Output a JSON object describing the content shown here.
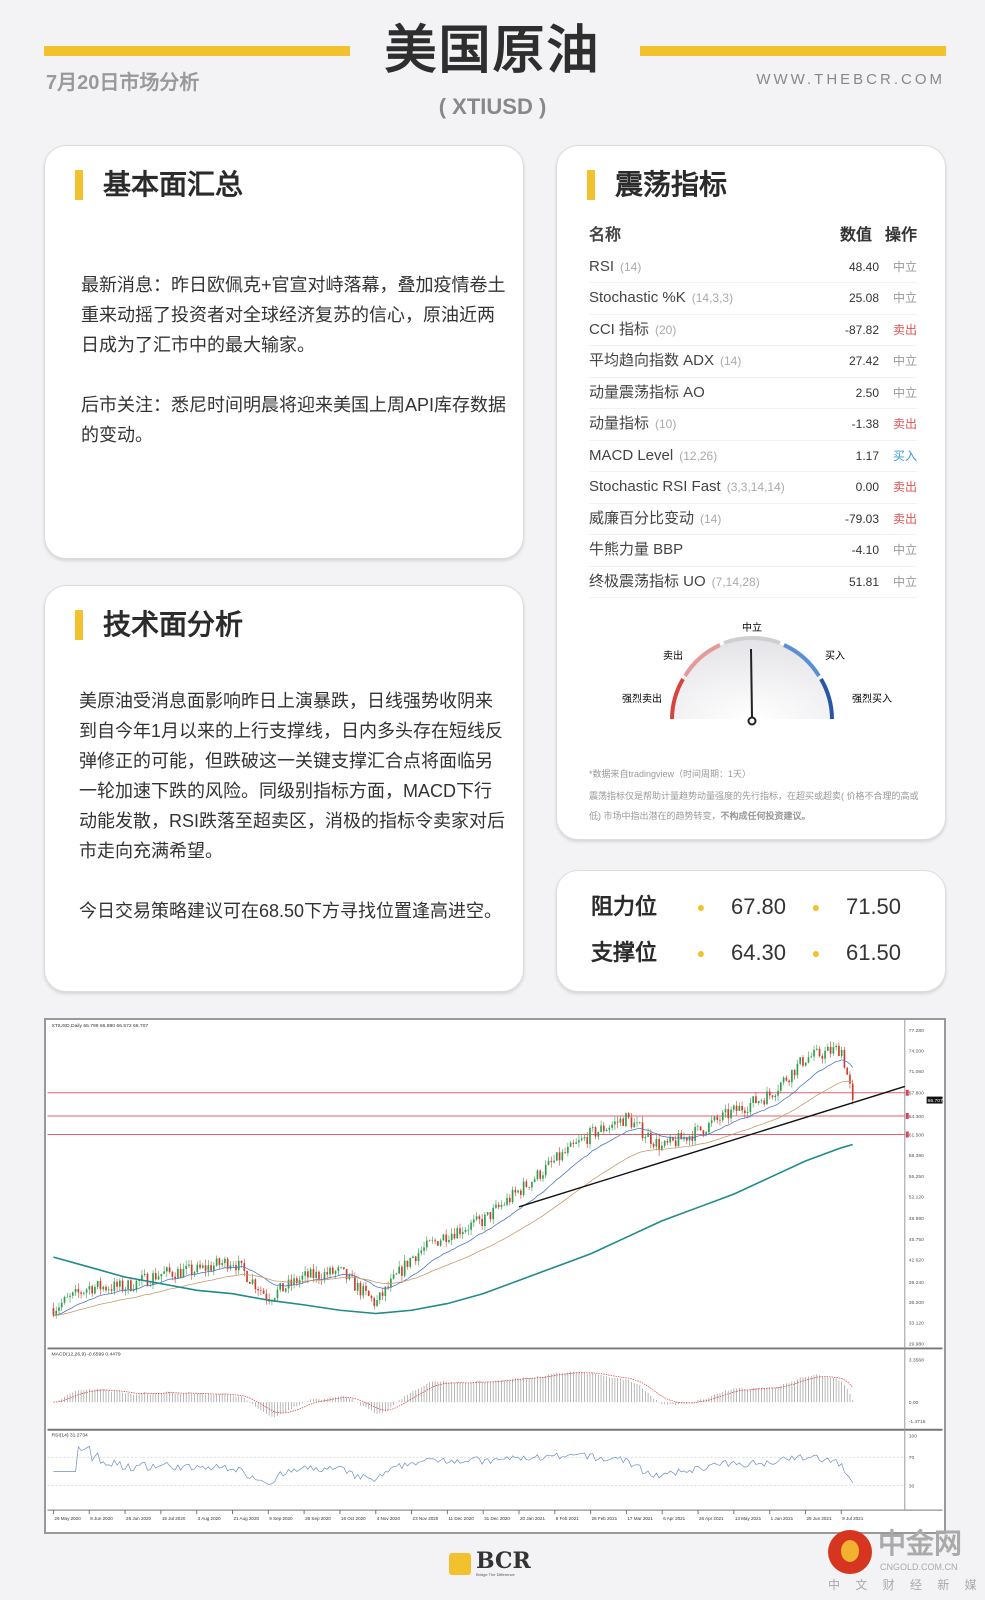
{
  "header": {
    "title": "美国原油",
    "symbol": "( XTIUSD )",
    "date": "7月20日市场分析",
    "site": "WWW.THEBCR.COM",
    "accent": "#f2c12e"
  },
  "fundamentals": {
    "title": "基本面汇总",
    "p1": "最新消息：昨日欧佩克+官宣对峙落幕，叠加疫情卷土重来动摇了投资者对全球经济复苏的信心，原油近两日成为了汇市中的最大输家。",
    "p2": "后市关注：悉尼时间明晨将迎来美国上周API库存数据的变动。"
  },
  "technical": {
    "title": "技术面分析",
    "p1": "美原油受消息面影响昨日上演暴跌，日线强势收阴来到自今年1月以来的上行支撑线，日内多头存在短线反弹修正的可能，但跌破这一关键支撑汇合点将面临另一轮加速下跌的风险。同级别指标方面，MACD下行动能发散，RSI跌落至超卖区，消极的指标令卖家对后市走向充满希望。",
    "p2": "今日交易策略建议可在68.50下方寻找位置逢高进空。"
  },
  "oscillators": {
    "title": "震荡指标",
    "col_name": "名称",
    "col_value": "数值",
    "col_action": "操作",
    "rows": [
      {
        "name": "RSI",
        "param": "(14)",
        "value": "48.40",
        "action": "中立"
      },
      {
        "name": "Stochastic %K",
        "param": "(14,3,3)",
        "value": "25.08",
        "action": "中立"
      },
      {
        "name": "CCI 指标",
        "param": "(20)",
        "value": "-87.82",
        "action": "卖出"
      },
      {
        "name": "平均趋向指数 ADX",
        "param": "(14)",
        "value": "27.42",
        "action": "中立"
      },
      {
        "name": "动量震荡指标 AO",
        "param": "",
        "value": "2.50",
        "action": "中立"
      },
      {
        "name": "动量指标",
        "param": "(10)",
        "value": "-1.38",
        "action": "卖出"
      },
      {
        "name": "MACD Level",
        "param": "(12,26)",
        "value": "1.17",
        "action": "买入"
      },
      {
        "name": "Stochastic RSI Fast",
        "param": "(3,3,14,14)",
        "value": "0.00",
        "action": "卖出"
      },
      {
        "name": "威廉百分比变动",
        "param": "(14)",
        "value": "-79.03",
        "action": "卖出"
      },
      {
        "name": "牛熊力量 BBP",
        "param": "",
        "value": "-4.10",
        "action": "中立"
      },
      {
        "name": "终极震荡指标 UO",
        "param": "(7,14,28)",
        "value": "51.81",
        "action": "中立"
      }
    ],
    "action_colors": {
      "中立": "#999999",
      "卖出": "#e05555",
      "买入": "#3a9ad9"
    },
    "gauge": {
      "labels": {
        "strong_sell": "强烈卖出",
        "sell": "卖出",
        "neutral": "中立",
        "buy": "买入",
        "strong_buy": "强烈买入"
      },
      "reading": "中立"
    },
    "note1": "*数据来自tradingview（时间周期：1天）",
    "note2": "震荡指标仅是帮助计量趋势动量强度的先行指标，在超买或超卖( 价格不合理的高或低) 市场中指出潜在的趋势转变，",
    "note3": "不构成任何投资建议。"
  },
  "levels": {
    "resistance_label": "阻力位",
    "support_label": "支撑位",
    "resistance": [
      "67.80",
      "71.50"
    ],
    "support": [
      "64.30",
      "61.50"
    ]
  },
  "chart_data": {
    "type": "candlestick",
    "header": "XTIUSD,Daily  66.799 66.980 66.572 66.707",
    "price_ticks": [
      "77.280",
      "74.200",
      "71.060",
      "67.800",
      "64.300",
      "61.500",
      "58.390",
      "55.250",
      "52.120",
      "48.890",
      "45.750",
      "42.620",
      "39.240",
      "36.200",
      "33.120",
      "29.980"
    ],
    "current_price": "66.707",
    "levels": [
      67.8,
      64.3,
      61.5
    ],
    "macd_ticks": [
      "3.3568",
      "0.00",
      "-1.4716"
    ],
    "macd_range": [
      -1.47,
      3.36
    ],
    "rsi_label": "RSI(14) 31.2734",
    "rsi_ticks": [
      "100",
      "70",
      "30"
    ],
    "macd_label": "MACD(12,26,9) -0.6599 0.4479",
    "dates": [
      "29 May 2020",
      "8 Jun 2020",
      "26 Jun 2020",
      "15 Jul 2020",
      "3 Aug 2020",
      "21 Aug 2020",
      "9 Sep 2020",
      "28 Sep 2020",
      "16 Oct 2020",
      "4 Nov 2020",
      "23 Nov 2020",
      "11 Dec 2020",
      "31 Dec 2020",
      "20 Jan 2021",
      "8 Feb 2021",
      "26 Feb 2021",
      "17 Mar 2021",
      "6 Apr 2021",
      "26 Apr 2021",
      "13 May 2021",
      "1 Jun 2021",
      "29 Jun 2021",
      "9 Jul 2021"
    ],
    "close_path": [
      35.3,
      38.5,
      38.5,
      40.5,
      41,
      42.5,
      37,
      40,
      40.8,
      36,
      43,
      46.5,
      48.5,
      53,
      57.5,
      61.5,
      64,
      59.5,
      62,
      65,
      67.5,
      73,
      74.5
    ],
    "last_close": 66.7,
    "ma_long_path": [
      43,
      41.5,
      40,
      39,
      38,
      37.5,
      36.5,
      35.8,
      35,
      34.5,
      35,
      36,
      37.5,
      39.5,
      41.5,
      43.5,
      46,
      48.5,
      50.5,
      52.5,
      55,
      57.5,
      59.5
    ],
    "trendline": {
      "from": [
        "20 Jan 2021",
        50.6
      ],
      "to_price_at_last": 66.3
    },
    "ylim": [
      29.98,
      77.28
    ]
  },
  "footer": {
    "brand": "BCR",
    "brand_tag": "Bridge The Difference",
    "partner": "中金网",
    "partner_url_text": "CNGOLD.COM.CN",
    "partner_tag": "中 文 财 经 新 媒 体"
  }
}
